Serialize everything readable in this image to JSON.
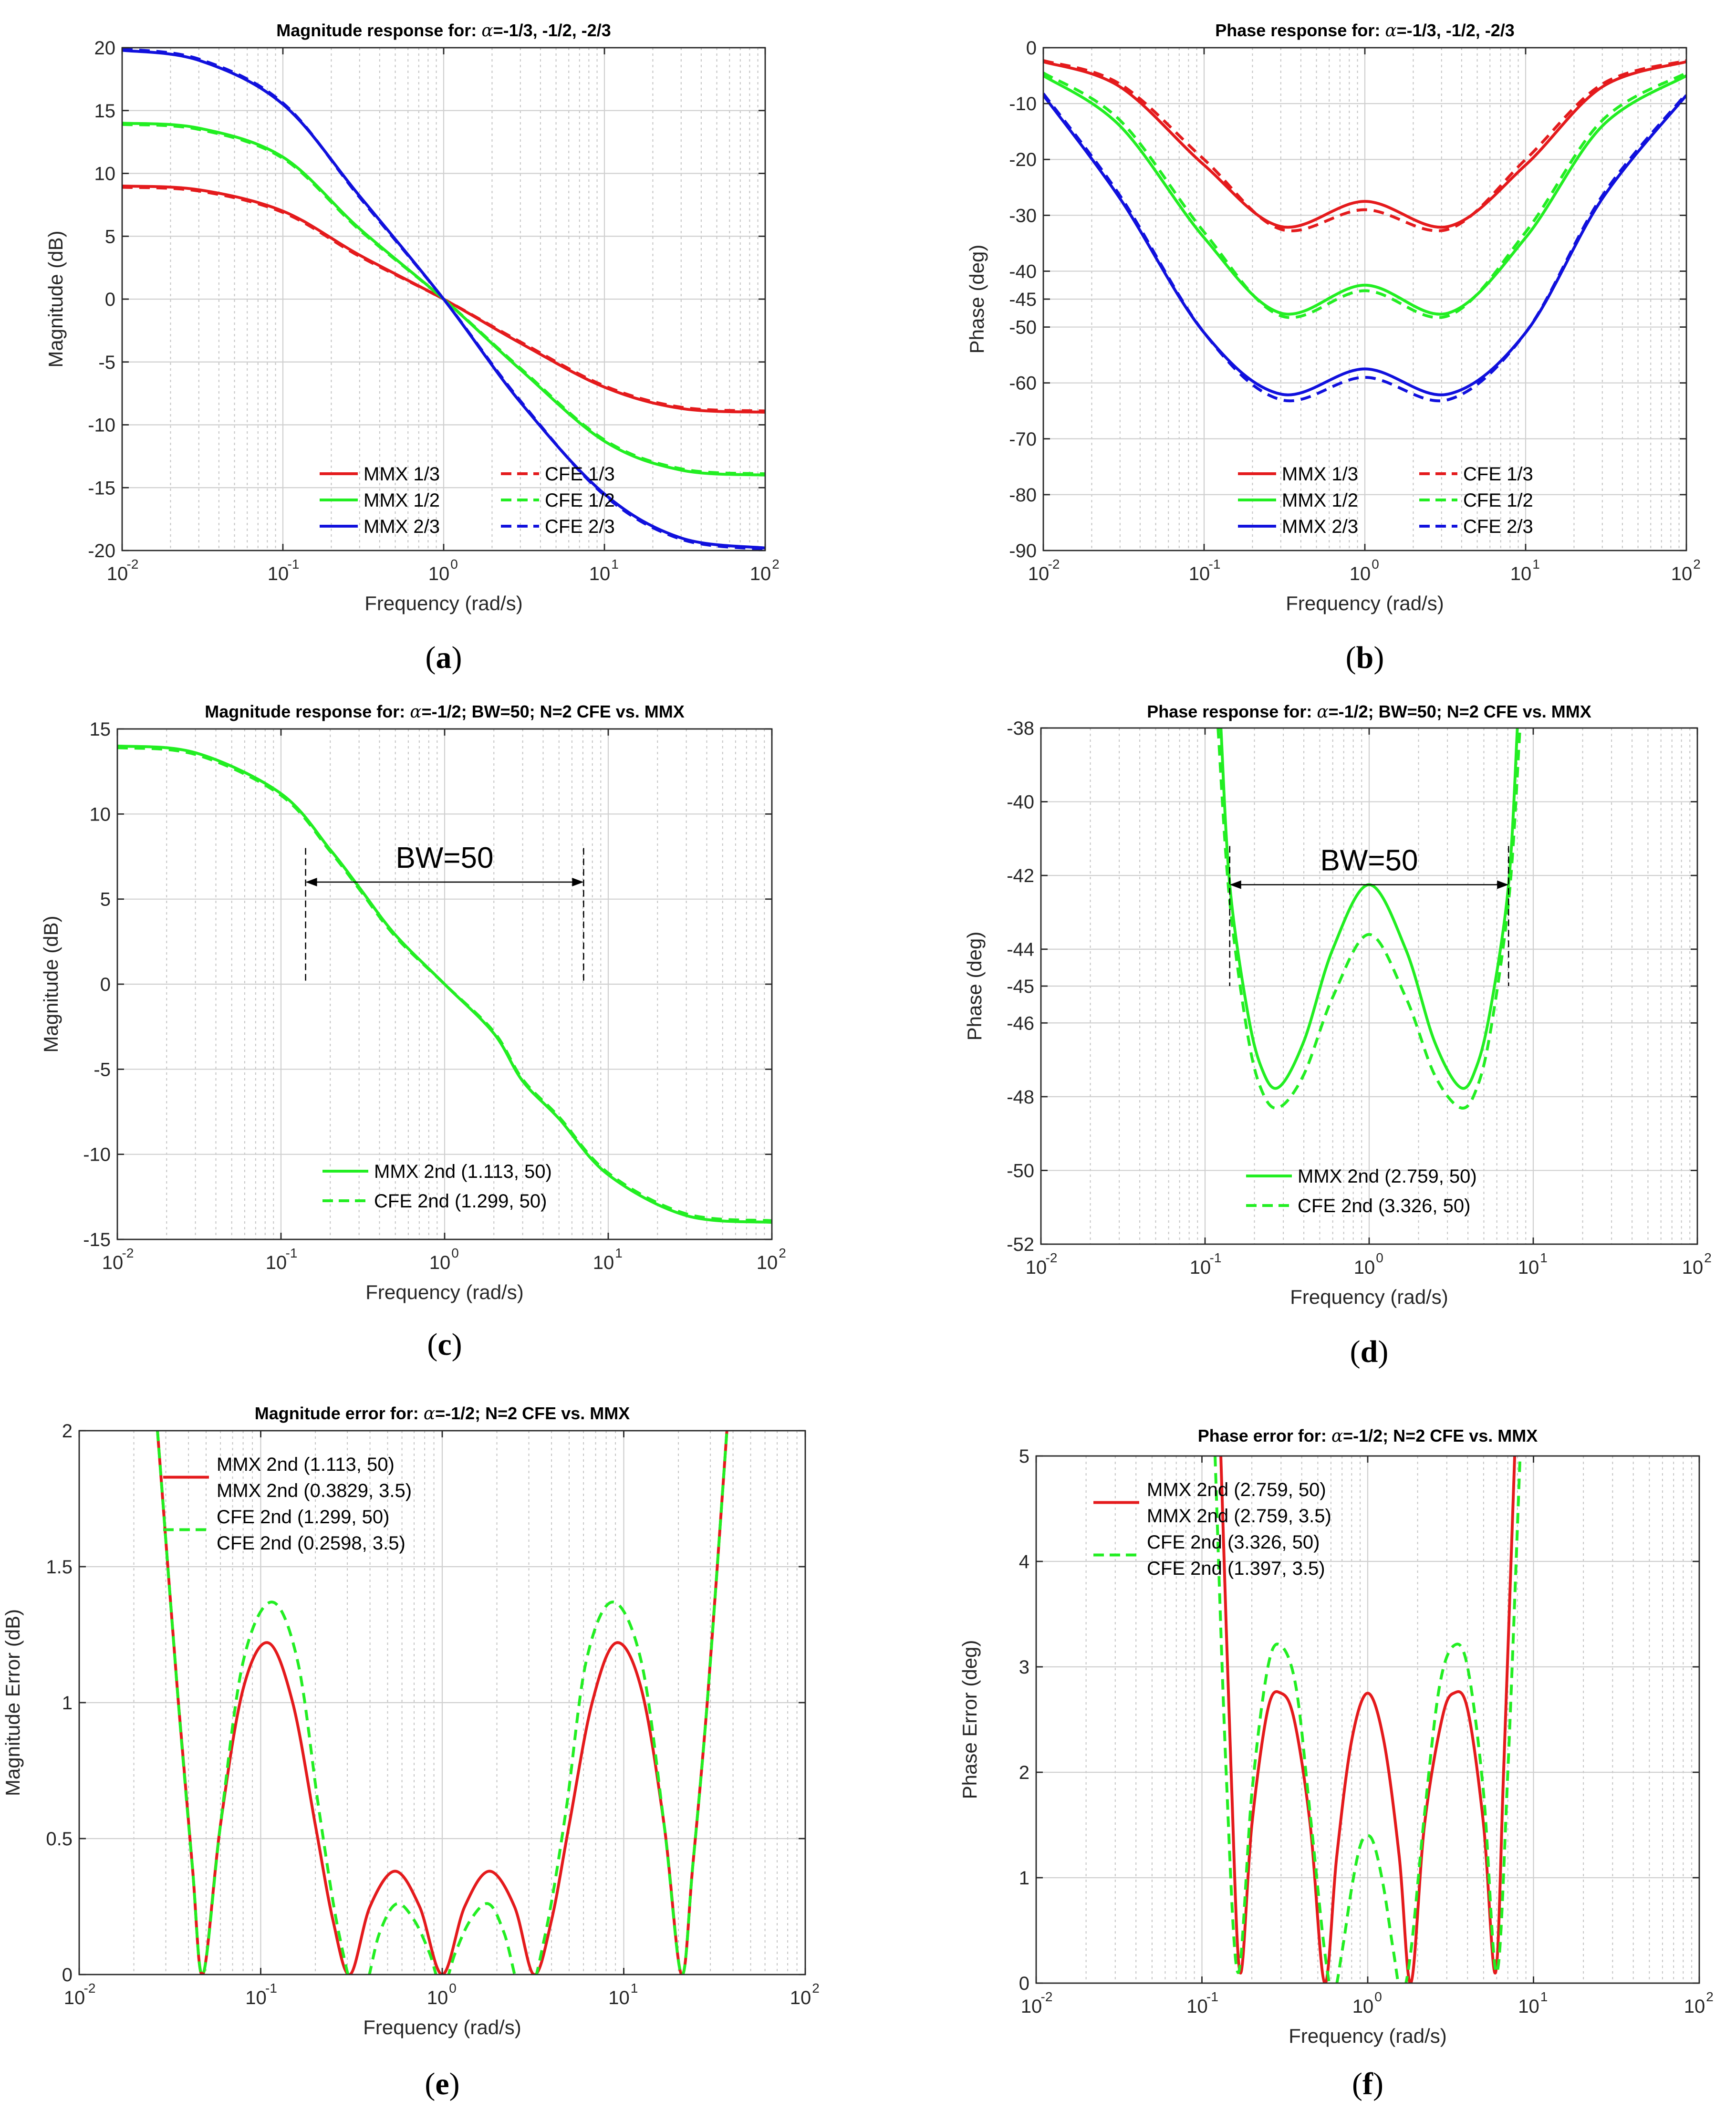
{
  "figure": {
    "panel_labels": [
      "a",
      "b",
      "c",
      "d",
      "e",
      "f"
    ]
  },
  "colors": {
    "red": "#e41a1c",
    "green": "#22ee22",
    "blue": "#1010dd"
  },
  "chart_data": [
    {
      "id": "a",
      "type": "line",
      "title_prefix": "Magnitude response for: ",
      "title_greek": "α",
      "title_suffix": "=-1/3, -1/2, -2/3",
      "xlabel": "Frequency (rad/s)",
      "ylabel": "Magnitude (dB)",
      "xscale": "log",
      "xlim": [
        0.01,
        100
      ],
      "ylim": [
        -20,
        20
      ],
      "yticks": [
        -20,
        -15,
        -10,
        -5,
        0,
        5,
        10,
        15,
        20
      ],
      "legend": {
        "cols": 2,
        "labels": [
          "MMX 1/3",
          "CFE 1/3",
          "MMX 1/2",
          "CFE 1/2",
          "MMX 2/3",
          "CFE 2/3"
        ]
      },
      "series": [
        {
          "name": "MMX 1/3",
          "color": "red",
          "dash": false,
          "x": [
            0.01,
            0.03,
            0.1,
            0.3,
            1,
            3,
            10,
            30,
            100
          ],
          "y": [
            9.0,
            8.7,
            7.0,
            3.5,
            0,
            -3.5,
            -7.0,
            -8.7,
            -9.0
          ]
        },
        {
          "name": "CFE 1/3",
          "color": "red",
          "dash": true,
          "x": [
            0.01,
            0.03,
            0.1,
            0.3,
            1,
            3,
            10,
            30,
            100
          ],
          "y": [
            8.9,
            8.6,
            6.9,
            3.4,
            0,
            -3.4,
            -6.9,
            -8.6,
            -8.9
          ]
        },
        {
          "name": "MMX 1/2",
          "color": "green",
          "dash": false,
          "x": [
            0.01,
            0.03,
            0.1,
            0.3,
            1,
            3,
            10,
            30,
            100
          ],
          "y": [
            14.0,
            13.6,
            11.3,
            5.6,
            0,
            -5.6,
            -11.3,
            -13.6,
            -14.0
          ]
        },
        {
          "name": "CFE 1/2",
          "color": "green",
          "dash": true,
          "x": [
            0.01,
            0.03,
            0.1,
            0.3,
            1,
            3,
            10,
            30,
            100
          ],
          "y": [
            13.9,
            13.5,
            11.2,
            5.5,
            0,
            -5.5,
            -11.2,
            -13.5,
            -13.9
          ]
        },
        {
          "name": "MMX 2/3",
          "color": "blue",
          "dash": false,
          "x": [
            0.01,
            0.03,
            0.1,
            0.3,
            1,
            3,
            10,
            30,
            100
          ],
          "y": [
            19.8,
            19.0,
            15.5,
            8.2,
            0,
            -8.2,
            -15.5,
            -19.0,
            -19.8
          ]
        },
        {
          "name": "CFE 2/3",
          "color": "blue",
          "dash": true,
          "x": [
            0.01,
            0.03,
            0.1,
            0.3,
            1,
            3,
            10,
            30,
            100
          ],
          "y": [
            19.9,
            19.1,
            15.6,
            8.1,
            0,
            -8.1,
            -15.6,
            -19.1,
            -19.9
          ]
        }
      ]
    },
    {
      "id": "b",
      "type": "line",
      "title_prefix": "Phase response for: ",
      "title_greek": "α",
      "title_suffix": "=-1/3, -1/2, -2/3",
      "xlabel": "Frequency (rad/s)",
      "ylabel": "Phase (deg)",
      "xscale": "log",
      "xlim": [
        0.01,
        100
      ],
      "ylim": [
        -90,
        0
      ],
      "yticks": [
        -90,
        -80,
        -70,
        -60,
        -50,
        -45,
        -40,
        -30,
        -20,
        -10,
        0
      ],
      "legend": {
        "cols": 2,
        "labels": [
          "MMX 1/3",
          "CFE 1/3",
          "MMX 1/2",
          "CFE 1/2",
          "MMX 2/3",
          "CFE 2/3"
        ]
      },
      "series": [
        {
          "name": "MMX 1/3",
          "color": "red",
          "dash": false,
          "x": [
            0.01,
            0.03,
            0.1,
            0.3,
            1,
            3.3,
            10,
            30,
            100
          ],
          "y": [
            -2.5,
            -7,
            -21,
            -32,
            -27.5,
            -32,
            -21,
            -7,
            -2.5
          ]
        },
        {
          "name": "CFE 1/3",
          "color": "red",
          "dash": true,
          "x": [
            0.01,
            0.03,
            0.1,
            0.3,
            1,
            3.3,
            10,
            30,
            100
          ],
          "y": [
            -2.3,
            -6.5,
            -20,
            -32.5,
            -29,
            -32.5,
            -20,
            -6.5,
            -2.3
          ]
        },
        {
          "name": "MMX 1/2",
          "color": "green",
          "dash": false,
          "x": [
            0.01,
            0.03,
            0.1,
            0.3,
            1,
            3.3,
            10,
            30,
            100
          ],
          "y": [
            -5,
            -14,
            -34,
            -47.5,
            -42.5,
            -47.5,
            -34,
            -14,
            -5
          ]
        },
        {
          "name": "CFE 1/2",
          "color": "green",
          "dash": true,
          "x": [
            0.01,
            0.03,
            0.1,
            0.3,
            1,
            3.3,
            10,
            30,
            100
          ],
          "y": [
            -4.5,
            -13,
            -33,
            -48,
            -43.5,
            -48,
            -33,
            -13,
            -4.5
          ]
        },
        {
          "name": "MMX 2/3",
          "color": "blue",
          "dash": false,
          "x": [
            0.01,
            0.03,
            0.1,
            0.3,
            1,
            3.3,
            10,
            30,
            100
          ],
          "y": [
            -8.5,
            -27,
            -51,
            -62,
            -57.5,
            -62,
            -51,
            -27,
            -8.5
          ]
        },
        {
          "name": "CFE 2/3",
          "color": "blue",
          "dash": true,
          "x": [
            0.01,
            0.03,
            0.1,
            0.3,
            1,
            3.3,
            10,
            30,
            100
          ],
          "y": [
            -8.2,
            -26.5,
            -51,
            -63,
            -59,
            -63,
            -51,
            -26.5,
            -8.2
          ]
        }
      ]
    },
    {
      "id": "c",
      "type": "line",
      "title_prefix": "Magnitude response for: ",
      "title_greek": "α",
      "title_suffix": "=-1/2; BW=50; N=2 CFE vs. MMX",
      "xlabel": "Frequency (rad/s)",
      "ylabel": "Magnitude (dB)",
      "xscale": "log",
      "xlim": [
        0.01,
        100
      ],
      "ylim": [
        -15,
        15
      ],
      "yticks": [
        -15,
        -10,
        -5,
        0,
        5,
        10,
        15
      ],
      "legend": {
        "cols": 1,
        "labels": [
          "MMX 2nd (1.113, 50)",
          "CFE 2nd (1.299, 50)"
        ]
      },
      "annotation": {
        "text": "BW=50",
        "x1": 0.1414,
        "x2": 7.07,
        "y": 6,
        "ybottom": 0,
        "ytop": 8
      },
      "series": [
        {
          "name": "MMX 2nd (1.113, 50)",
          "color": "green",
          "dash": false,
          "x": [
            0.01,
            0.03,
            0.1,
            0.2,
            0.3,
            0.5,
            1,
            2,
            3,
            5,
            10,
            30,
            100
          ],
          "y": [
            14.0,
            13.6,
            11.2,
            7.9,
            5.7,
            2.9,
            0,
            -2.9,
            -5.7,
            -7.9,
            -11.2,
            -13.6,
            -14.0
          ]
        },
        {
          "name": "CFE 2nd (1.299, 50)",
          "color": "green",
          "dash": true,
          "x": [
            0.01,
            0.03,
            0.1,
            0.2,
            0.3,
            0.5,
            1,
            2,
            3,
            5,
            10,
            30,
            100
          ],
          "y": [
            13.9,
            13.5,
            11.1,
            7.8,
            5.6,
            2.8,
            0,
            -2.8,
            -5.6,
            -7.8,
            -11.1,
            -13.5,
            -13.9
          ]
        }
      ]
    },
    {
      "id": "d",
      "type": "line",
      "title_prefix": "Phase response for: ",
      "title_greek": "α",
      "title_suffix": "=-1/2; BW=50; N=2 CFE vs. MMX",
      "xlabel": "Frequency (rad/s)",
      "ylabel": "Phase (deg)",
      "xscale": "log",
      "xlim": [
        0.01,
        100
      ],
      "ylim": [
        -52,
        -38
      ],
      "yticks": [
        -52,
        -50,
        -48,
        -46,
        -45,
        -44,
        -42,
        -40,
        -38
      ],
      "legend": {
        "cols": 1,
        "labels": [
          "MMX 2nd (2.759, 50)",
          "CFE 2nd (3.326, 50)"
        ]
      },
      "annotation": {
        "text": "BW=50",
        "x1": 0.1414,
        "x2": 7.07,
        "y": -42.25,
        "ybottom": -45,
        "ytop": -41.2
      },
      "series": [
        {
          "name": "MMX 2nd (2.759, 50)",
          "color": "green",
          "dash": false,
          "x": [
            0.125,
            0.1414,
            0.18,
            0.22,
            0.28,
            0.4,
            0.6,
            1,
            1.67,
            2.5,
            3.6,
            4.5,
            5.5,
            7.07,
            8
          ],
          "y": [
            -38,
            -42.25,
            -45.6,
            -47.2,
            -47.75,
            -46.5,
            -44,
            -42.25,
            -44,
            -46.5,
            -47.75,
            -47.2,
            -45.6,
            -42.25,
            -38
          ]
        },
        {
          "name": "CFE 2nd (3.326, 50)",
          "color": "green",
          "dash": true,
          "x": [
            0.12,
            0.14,
            0.18,
            0.22,
            0.28,
            0.4,
            0.6,
            1,
            1.67,
            2.5,
            3.6,
            4.5,
            5.5,
            7.15,
            8.3
          ],
          "y": [
            -38,
            -42.5,
            -46.2,
            -47.8,
            -48.3,
            -47.4,
            -45.3,
            -43.6,
            -45.3,
            -47.4,
            -48.3,
            -47.8,
            -46.2,
            -42.5,
            -38
          ]
        }
      ]
    },
    {
      "id": "e",
      "type": "line",
      "title_prefix": "Magnitude error for: ",
      "title_greek": "α",
      "title_suffix": "=-1/2; N=2 CFE vs. MMX",
      "xlabel": "Frequency (rad/s)",
      "ylabel": "Magnitude Error (dB)",
      "xscale": "log",
      "xlim": [
        0.01,
        100
      ],
      "ylim": [
        0,
        2
      ],
      "yticks": [
        0,
        0.5,
        1,
        1.5,
        2
      ],
      "legend": {
        "cols": 1,
        "labels": [
          "MMX 2nd (1.113, 50)",
          "MMX 2nd (0.3829, 3.5)",
          "CFE 2nd (1.299, 50)",
          "CFE 2nd (0.2598, 3.5)"
        ]
      },
      "series": [
        {
          "name": "MMX 2nd",
          "color": "red",
          "dash": false,
          "x": [
            0.027,
            0.035,
            0.042,
            0.048,
            0.06,
            0.08,
            0.11,
            0.15,
            0.2,
            0.25,
            0.31,
            0.4,
            0.55,
            0.75,
            1,
            1.33,
            1.82,
            2.5,
            3.2,
            4,
            5,
            6.7,
            9.1,
            12.5,
            16.7,
            20.8,
            24,
            29,
            37
          ],
          "y": [
            2.0,
            1.02,
            0.4,
            0,
            0.55,
            1.05,
            1.22,
            1.0,
            0.55,
            0.2,
            0,
            0.25,
            0.38,
            0.25,
            0,
            0.25,
            0.38,
            0.25,
            0,
            0.2,
            0.55,
            1.0,
            1.22,
            1.05,
            0.55,
            0,
            0.4,
            1.02,
            2.0
          ]
        },
        {
          "name": "CFE 2nd",
          "color": "green",
          "dash": true,
          "x": [
            0.027,
            0.035,
            0.042,
            0.048,
            0.06,
            0.08,
            0.115,
            0.16,
            0.21,
            0.27,
            0.35,
            0.45,
            0.56,
            0.7,
            0.85,
            1,
            1.18,
            1.43,
            1.8,
            2.2,
            2.86,
            3.7,
            4.8,
            6.2,
            8.7,
            12.5,
            16.7,
            20.8,
            24,
            29,
            37
          ],
          "y": [
            2.0,
            1.02,
            0.4,
            0,
            0.55,
            1.15,
            1.37,
            1.15,
            0.6,
            0.15,
            -0.1,
            0.15,
            0.26,
            0.2,
            0.08,
            -0.05,
            0.08,
            0.2,
            0.26,
            0.15,
            -0.1,
            0.15,
            0.6,
            1.15,
            1.37,
            1.15,
            0.55,
            0,
            0.4,
            1.02,
            2.0
          ]
        }
      ]
    },
    {
      "id": "f",
      "type": "line",
      "title_prefix": "Phase error for: ",
      "title_greek": "α",
      "title_suffix": "=-1/2; N=2 CFE vs. MMX",
      "xlabel": "Frequency (rad/s)",
      "ylabel": "Phase Error (deg)",
      "xscale": "log",
      "xlim": [
        0.01,
        100
      ],
      "ylim": [
        0,
        5
      ],
      "yticks": [
        0,
        1,
        2,
        3,
        4,
        5
      ],
      "legend": {
        "cols": 1,
        "labels": [
          "MMX 2nd (2.759, 50)",
          "MMX 2nd (2.759, 3.5)",
          "CFE 2nd (3.326, 50)",
          "CFE 2nd (1.397, 3.5)"
        ]
      },
      "series": [
        {
          "name": "MMX 2nd",
          "color": "red",
          "dash": false,
          "x": [
            0.13,
            0.15,
            0.17,
            0.2,
            0.25,
            0.3,
            0.36,
            0.45,
            0.55,
            0.65,
            0.8,
            1,
            1.25,
            1.55,
            1.82,
            2.2,
            2.8,
            3.3,
            4,
            5,
            5.9,
            6.6,
            7.7
          ],
          "y": [
            5.0,
            2.0,
            0.1,
            1.5,
            2.6,
            2.75,
            2.5,
            1.5,
            0,
            1.2,
            2.3,
            2.75,
            2.3,
            1.2,
            0,
            1.5,
            2.5,
            2.75,
            2.6,
            1.5,
            0.1,
            2.0,
            5.0
          ]
        },
        {
          "name": "CFE 2nd",
          "color": "green",
          "dash": true,
          "x": [
            0.12,
            0.14,
            0.165,
            0.2,
            0.25,
            0.3,
            0.37,
            0.45,
            0.55,
            0.62,
            0.7,
            0.8,
            0.9,
            1,
            1.1,
            1.25,
            1.43,
            1.6,
            1.82,
            2.2,
            2.7,
            3.3,
            4,
            5,
            6,
            7,
            8.3
          ],
          "y": [
            5.0,
            2.0,
            0.1,
            1.8,
            3.0,
            3.2,
            2.8,
            1.6,
            0.3,
            -0.1,
            0.3,
            0.9,
            1.3,
            1.4,
            1.3,
            0.9,
            0.3,
            -0.1,
            0.3,
            1.6,
            2.8,
            3.2,
            3.0,
            1.8,
            0.1,
            2.0,
            5.0
          ]
        }
      ]
    }
  ]
}
